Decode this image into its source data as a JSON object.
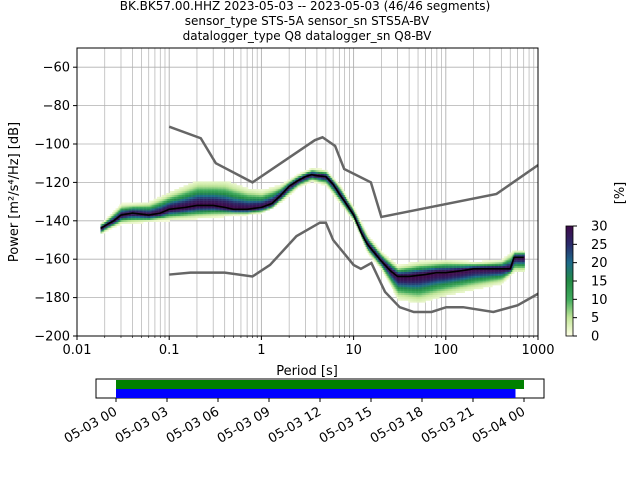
{
  "title_lines": [
    "BK.BK57.00.HHZ   2023-05-03 -- 2023-05-03  (46/46 segments)",
    "sensor_type STS-5A sensor_sn STS5A-BV",
    "datalogger_type Q8 datalogger_sn Q8-BV"
  ],
  "chart_data": {
    "type": "heatmap",
    "xlabel": "Period [s]",
    "ylabel": "Power [m²/s⁴/Hz] [dB]",
    "xscale": "log",
    "xlim": [
      0.01,
      1000
    ],
    "ylim": [
      -200,
      -50
    ],
    "xticks": [
      {
        "value": 0.01,
        "label": "0.01"
      },
      {
        "value": 0.1,
        "label": "0.1"
      },
      {
        "value": 1,
        "label": "1"
      },
      {
        "value": 10,
        "label": "10"
      },
      {
        "value": 100,
        "label": "100"
      },
      {
        "value": 1000,
        "label": "1000"
      }
    ],
    "yticks": [
      {
        "value": -60,
        "label": "−60"
      },
      {
        "value": -80,
        "label": "−80"
      },
      {
        "value": -100,
        "label": "−100"
      },
      {
        "value": -120,
        "label": "−120"
      },
      {
        "value": -140,
        "label": "−140"
      },
      {
        "value": -160,
        "label": "−160"
      },
      {
        "value": -180,
        "label": "−180"
      },
      {
        "value": -200,
        "label": "−200"
      }
    ],
    "grid": true,
    "colorbar": {
      "label": "[%]",
      "range": [
        0,
        30
      ],
      "ticks": [
        {
          "value": 0,
          "label": "0"
        },
        {
          "value": 5,
          "label": "5"
        },
        {
          "value": 10,
          "label": "10"
        },
        {
          "value": 15,
          "label": "15"
        },
        {
          "value": 20,
          "label": "20"
        },
        {
          "value": 25,
          "label": "25"
        },
        {
          "value": 30,
          "label": "30"
        }
      ],
      "colors": [
        "#ffffe5",
        "#c2e699",
        "#41ab5d",
        "#238b45",
        "#1d6b8a",
        "#2a2a6a",
        "#3f0a4a"
      ]
    },
    "noise_model_high": [
      [
        0.1,
        -91
      ],
      [
        0.22,
        -97
      ],
      [
        0.32,
        -110
      ],
      [
        0.8,
        -120
      ],
      [
        3.8,
        -98
      ],
      [
        4.6,
        -96.5
      ],
      [
        6.3,
        -101
      ],
      [
        7.9,
        -113
      ],
      [
        15.4,
        -120
      ],
      [
        20,
        -138
      ],
      [
        354.8,
        -126
      ],
      [
        1000,
        -111
      ]
    ],
    "noise_model_low": [
      [
        0.1,
        -168
      ],
      [
        0.17,
        -167
      ],
      [
        0.4,
        -167
      ],
      [
        0.8,
        -169
      ],
      [
        1.24,
        -163
      ],
      [
        2.4,
        -148
      ],
      [
        4.3,
        -141
      ],
      [
        5,
        -141
      ],
      [
        6,
        -150
      ],
      [
        10,
        -163
      ],
      [
        12,
        -165
      ],
      [
        15.6,
        -162
      ],
      [
        21.9,
        -177
      ],
      [
        31.6,
        -185
      ],
      [
        45,
        -187.5
      ],
      [
        70,
        -187.5
      ],
      [
        101,
        -185
      ],
      [
        154,
        -185
      ],
      [
        328,
        -187.5
      ],
      [
        600,
        -184
      ],
      [
        1000,
        -178
      ]
    ],
    "median": [
      [
        0.018,
        -144
      ],
      [
        0.021,
        -142
      ],
      [
        0.025,
        -140
      ],
      [
        0.03,
        -137
      ],
      [
        0.04,
        -136
      ],
      [
        0.06,
        -137
      ],
      [
        0.08,
        -136
      ],
      [
        0.1,
        -134
      ],
      [
        0.15,
        -133
      ],
      [
        0.2,
        -132
      ],
      [
        0.3,
        -132
      ],
      [
        0.4,
        -133
      ],
      [
        0.5,
        -134
      ],
      [
        0.7,
        -134
      ],
      [
        1,
        -133
      ],
      [
        1.3,
        -131
      ],
      [
        1.6,
        -127
      ],
      [
        2,
        -122
      ],
      [
        2.5,
        -119
      ],
      [
        3,
        -117
      ],
      [
        3.5,
        -116
      ],
      [
        4,
        -116.5
      ],
      [
        5,
        -117
      ],
      [
        6,
        -121
      ],
      [
        7,
        -126
      ],
      [
        8,
        -130
      ],
      [
        10,
        -137
      ],
      [
        12,
        -146
      ],
      [
        14,
        -152
      ],
      [
        17,
        -157
      ],
      [
        20,
        -161
      ],
      [
        25,
        -166
      ],
      [
        30,
        -169
      ],
      [
        40,
        -169
      ],
      [
        60,
        -168
      ],
      [
        80,
        -167
      ],
      [
        100,
        -167
      ],
      [
        150,
        -166
      ],
      [
        200,
        -165
      ],
      [
        350,
        -165
      ],
      [
        500,
        -165
      ],
      [
        550,
        -159
      ],
      [
        700,
        -159
      ]
    ],
    "psd_spread": [
      [
        0.018,
        -146,
        -142
      ],
      [
        0.03,
        -141,
        -132
      ],
      [
        0.06,
        -140,
        -131
      ],
      [
        0.1,
        -139,
        -126
      ],
      [
        0.2,
        -138,
        -120
      ],
      [
        0.4,
        -137,
        -120
      ],
      [
        0.7,
        -136,
        -124
      ],
      [
        1,
        -135,
        -125
      ],
      [
        1.6,
        -130,
        -122
      ],
      [
        2.5,
        -122,
        -116
      ],
      [
        3.5,
        -119,
        -113
      ],
      [
        5,
        -121,
        -114
      ],
      [
        7,
        -130,
        -122
      ],
      [
        10,
        -140,
        -134
      ],
      [
        14,
        -156,
        -148
      ],
      [
        20,
        -165,
        -157
      ],
      [
        30,
        -180,
        -164
      ],
      [
        50,
        -182,
        -162
      ],
      [
        100,
        -178,
        -161
      ],
      [
        200,
        -175,
        -162
      ],
      [
        400,
        -172,
        -161
      ],
      [
        550,
        -166,
        -156
      ],
      [
        700,
        -166,
        -156
      ]
    ],
    "segments_strip": {
      "xlim": [
        "05-03 00",
        "05-04 00"
      ],
      "ticks": [
        "05-03 00",
        "05-03 03",
        "05-03 06",
        "05-03 09",
        "05-03 12",
        "05-03 15",
        "05-03 18",
        "05-03 21",
        "05-04 00"
      ],
      "bars": [
        {
          "color": "#008000",
          "start_hours": 0,
          "end_hours": 24
        },
        {
          "color": "#0000ff",
          "start_hours": 0,
          "end_hours": 23.5
        }
      ]
    }
  }
}
